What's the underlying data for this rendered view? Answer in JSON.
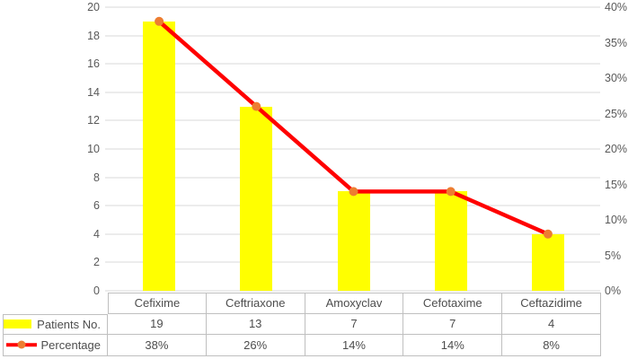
{
  "chart_data": {
    "type": "combo-bar-line",
    "title": "",
    "categories": [
      "Cefixime",
      "Ceftriaxone",
      "Amoxyclav",
      "Cefotaxime",
      "Ceftazidime"
    ],
    "series": [
      {
        "name": "Patients No.",
        "type": "bar",
        "axis": "left",
        "values": [
          19,
          13,
          7,
          7,
          4
        ],
        "labels": [
          "19",
          "13",
          "7",
          "7",
          "4"
        ],
        "color": "#FFFF00"
      },
      {
        "name": "Percentage",
        "type": "line",
        "axis": "right",
        "values": [
          38,
          26,
          14,
          14,
          8
        ],
        "labels": [
          "38%",
          "26%",
          "14%",
          "14%",
          "8%"
        ],
        "color": "#FF0000",
        "marker_color": "#ED7D31"
      }
    ],
    "left_axis": {
      "min": 0,
      "max": 20,
      "step": 2,
      "tick_labels": [
        "0",
        "2",
        "4",
        "6",
        "8",
        "10",
        "12",
        "14",
        "16",
        "18",
        "20"
      ]
    },
    "right_axis": {
      "min": 0,
      "max": 40,
      "step": 5,
      "tick_labels": [
        "0%",
        "5%",
        "10%",
        "15%",
        "20%",
        "25%",
        "30%",
        "35%",
        "40%"
      ]
    },
    "grid": {
      "show": true,
      "color": "#D9D9D9"
    },
    "legend_position": "data-table",
    "data_table": {
      "show": true
    }
  },
  "style": {
    "background": "#FFFFFF",
    "axis_text_color": "#595959",
    "table_text_color": "#4D4D4D",
    "table_border_color": "#BFBFBF"
  }
}
